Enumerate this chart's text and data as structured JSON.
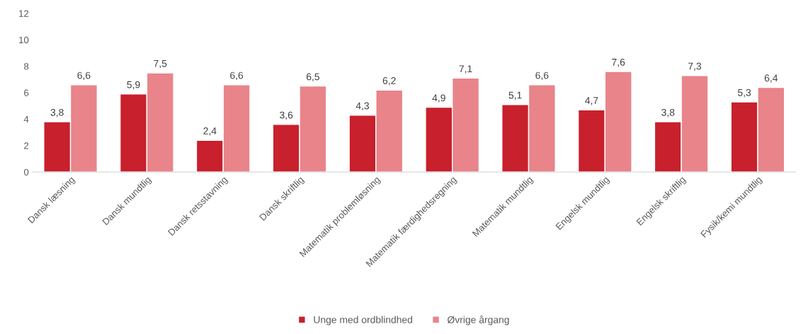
{
  "chart_data": {
    "type": "bar",
    "categories": [
      "Dansk læsning",
      "Dansk mundtlig",
      "Dansk retsstavning",
      "Dansk skriftlig",
      "Matematik problemløsning",
      "Matematik færdighedsregning",
      "Matematik mundtlig",
      "Engelsk mundtlig",
      "Engelsk skriftlig",
      "Fysik/kemi mundtlig"
    ],
    "series": [
      {
        "name": "Unge med ordblindhed",
        "color": "#c8202c",
        "values": [
          3.8,
          5.9,
          2.4,
          3.6,
          4.3,
          4.9,
          5.1,
          4.7,
          3.8,
          5.3
        ],
        "value_labels": [
          "3,8",
          "5,9",
          "2,4",
          "3,6",
          "4,3",
          "4,9",
          "5,1",
          "4,7",
          "3,8",
          "5,3"
        ]
      },
      {
        "name": "Øvrige årgang",
        "color": "#e8848a",
        "values": [
          6.6,
          7.5,
          6.6,
          6.5,
          6.2,
          7.1,
          6.6,
          7.6,
          7.3,
          6.4
        ],
        "value_labels": [
          "6,6",
          "7,5",
          "6,6",
          "6,5",
          "6,2",
          "7,1",
          "6,6",
          "7,6",
          "7,3",
          "6,4"
        ]
      }
    ],
    "ylim": [
      0,
      12
    ],
    "yticks": [
      0,
      2,
      4,
      6,
      8,
      10,
      12
    ],
    "grid": false,
    "legend": "bottom"
  }
}
